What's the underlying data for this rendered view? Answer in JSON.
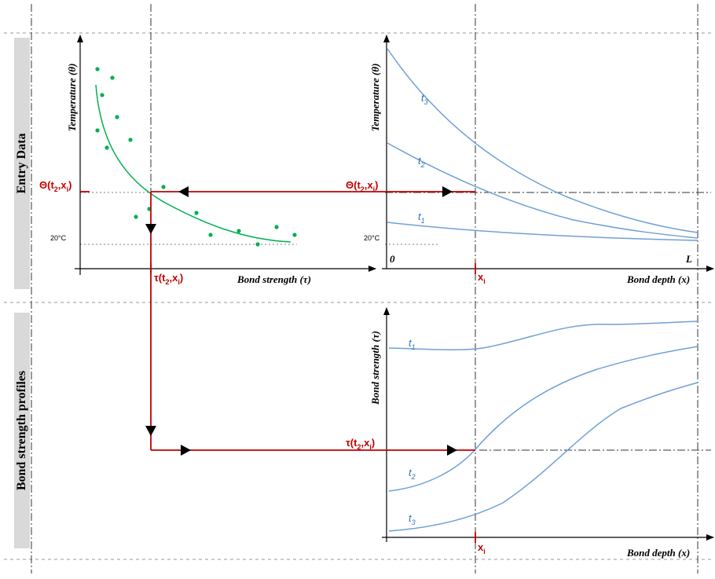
{
  "sections": {
    "top": "Entry Data",
    "bottom": "Bond strength profiles"
  },
  "axes": {
    "top_left_y": "Temperature (θ)",
    "top_left_x": "Bond strength  (τ)",
    "top_right_y": "Temperature (θ)",
    "top_right_x": "Bond depth (x)",
    "bottom_right_y": "Bond strength (τ)",
    "bottom_right_x": "Bond depth (x)",
    "origin": "0",
    "length": "L",
    "ambient": "20°C"
  },
  "markers": {
    "theta_main": "Θ(t",
    "theta_sub": "2",
    "theta_mid": ",x",
    "theta_sub2": "i",
    "theta_end": ")",
    "tau_main": "τ(t",
    "tau_sub": "2",
    "tau_mid": ",x",
    "tau_sub2": "i",
    "tau_end": ")",
    "x_main": "x",
    "x_sub": "i"
  },
  "curves": {
    "t": "t",
    "s1": "1",
    "s2": "2",
    "s3": "3"
  },
  "colors": {
    "red": "#c00000",
    "green": "#00b050",
    "blue": "#6fa0d6",
    "band": "#d9d9d9"
  }
}
